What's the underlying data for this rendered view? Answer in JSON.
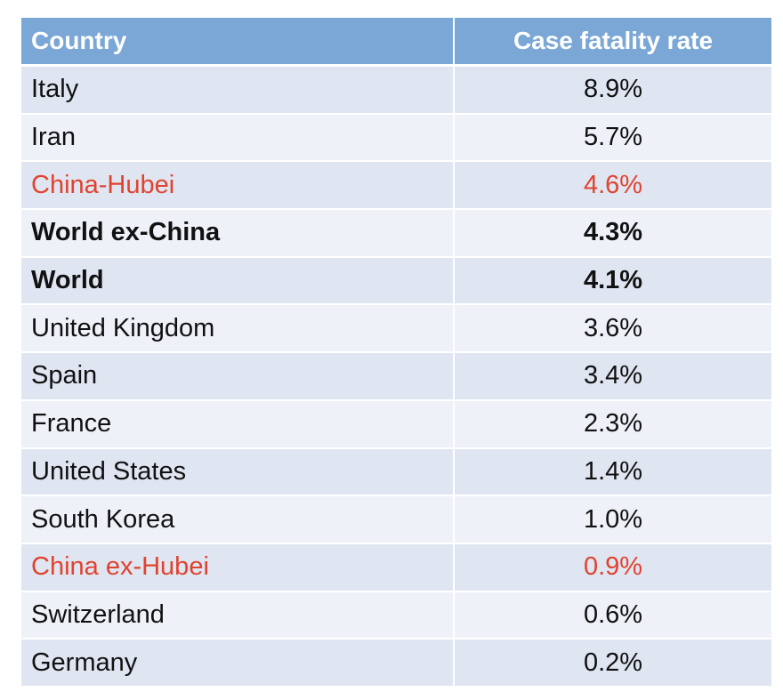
{
  "chart_data": {
    "type": "table",
    "columns": [
      "Country",
      "Case fatality rate"
    ],
    "rows": [
      {
        "country": "Italy",
        "rate": "8.9%",
        "value": 8.9,
        "style": "normal"
      },
      {
        "country": "Iran",
        "rate": "5.7%",
        "value": 5.7,
        "style": "normal"
      },
      {
        "country": "China-Hubei",
        "rate": "4.6%",
        "value": 4.6,
        "style": "red"
      },
      {
        "country": "World ex-China",
        "rate": "4.3%",
        "value": 4.3,
        "style": "bold"
      },
      {
        "country": "World",
        "rate": "4.1%",
        "value": 4.1,
        "style": "bold"
      },
      {
        "country": "United Kingdom",
        "rate": "3.6%",
        "value": 3.6,
        "style": "normal"
      },
      {
        "country": "Spain",
        "rate": "3.4%",
        "value": 3.4,
        "style": "normal"
      },
      {
        "country": "France",
        "rate": "2.3%",
        "value": 2.3,
        "style": "normal"
      },
      {
        "country": "United States",
        "rate": "1.4%",
        "value": 1.4,
        "style": "normal"
      },
      {
        "country": "South Korea",
        "rate": "1.0%",
        "value": 1.0,
        "style": "normal"
      },
      {
        "country": "China ex-Hubei",
        "rate": "0.9%",
        "value": 0.9,
        "style": "red"
      },
      {
        "country": "Switzerland",
        "rate": "0.6%",
        "value": 0.6,
        "style": "normal"
      },
      {
        "country": "Germany",
        "rate": "0.2%",
        "value": 0.2,
        "style": "normal"
      }
    ]
  },
  "colors": {
    "header_bg": "#7ba7d6",
    "row_odd": "#dfe5f1",
    "row_even": "#eef1f8",
    "highlight_text": "#e0432f"
  }
}
